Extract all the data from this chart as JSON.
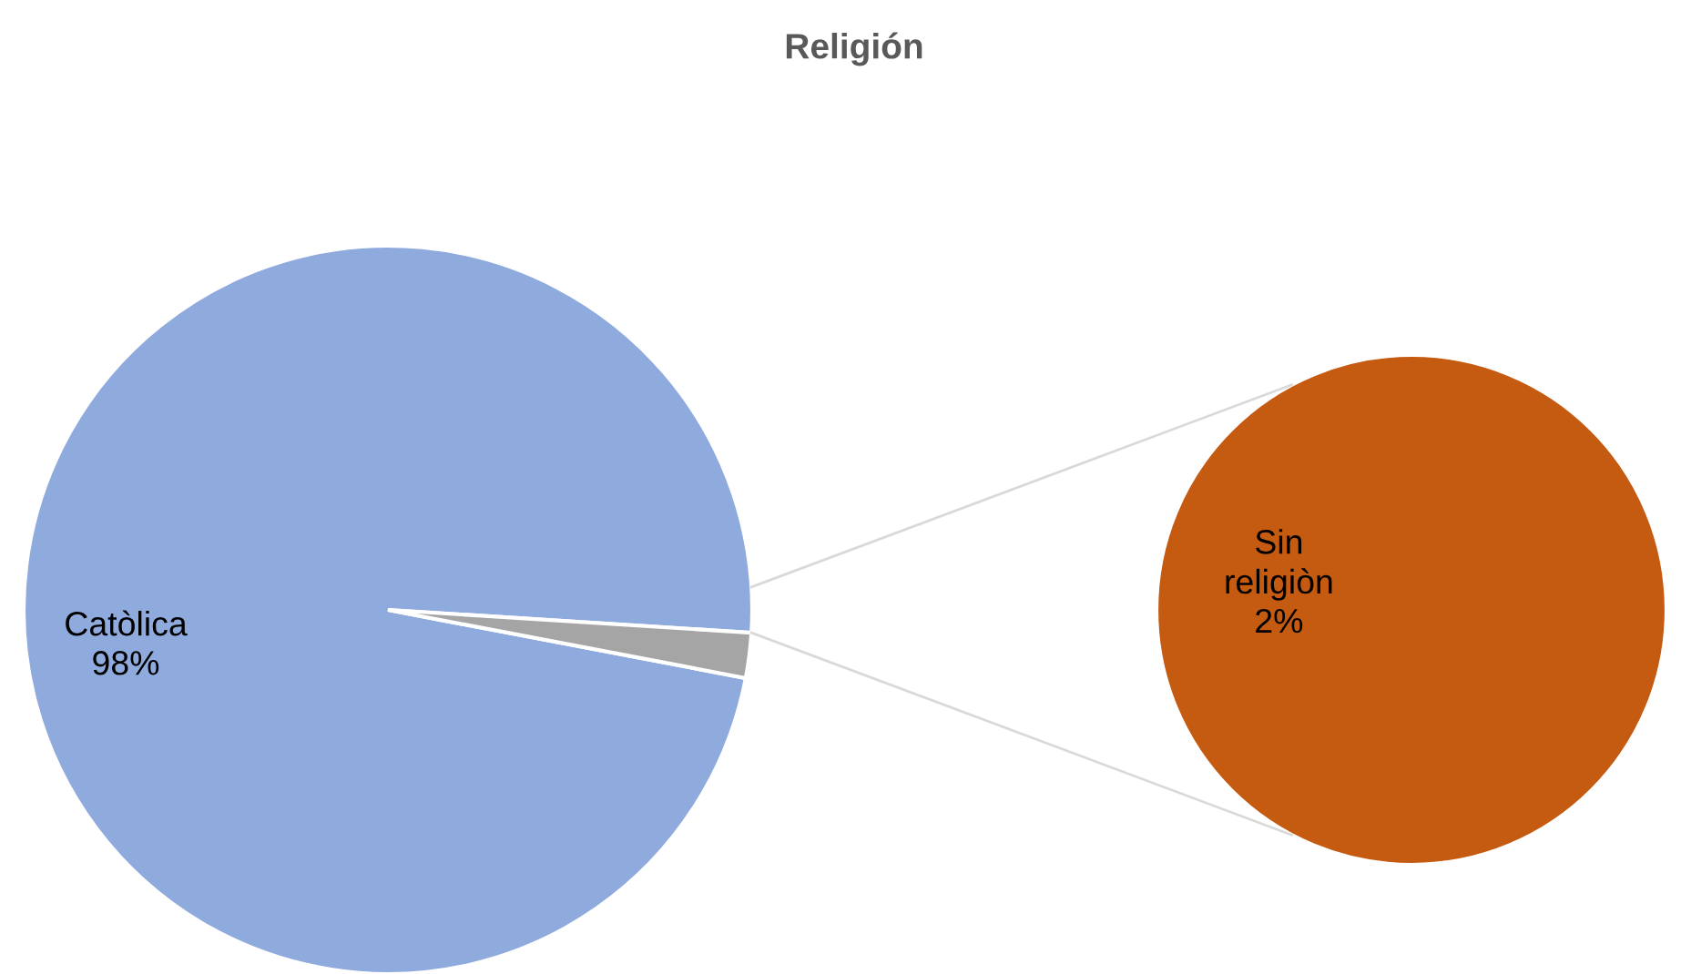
{
  "chart_data": [
    {
      "type": "pie",
      "title": "Religión",
      "categories": [
        "Catòlica",
        null
      ],
      "values": [
        98,
        2
      ],
      "colors": [
        "#8faadc",
        "#a5a5a5"
      ],
      "value_labels": [
        "98%",
        null
      ]
    },
    {
      "type": "pie",
      "categories": [
        "Sin religiòn"
      ],
      "values": [
        2
      ],
      "colors": [
        "#c55a11"
      ],
      "value_labels": [
        "2%"
      ]
    }
  ]
}
